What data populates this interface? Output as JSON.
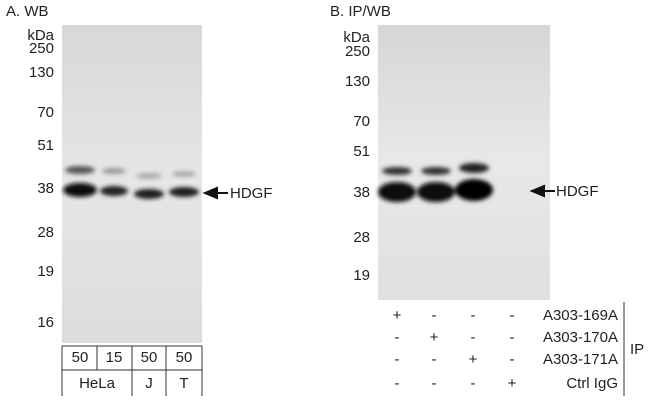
{
  "panel_a": {
    "title": "A. WB",
    "markers": [
      "kDa",
      "250",
      "130",
      "70",
      "51",
      "38",
      "28",
      "19",
      "16"
    ],
    "target": "HDGF",
    "amounts": [
      "50",
      "15",
      "50",
      "50"
    ],
    "cell_lines": [
      "HeLa",
      "J",
      "T"
    ]
  },
  "panel_b": {
    "title": "B. IP/WB",
    "markers": [
      "kDa",
      "250",
      "130",
      "70",
      "51",
      "38",
      "28",
      "19"
    ],
    "target": "HDGF",
    "ip_rows": [
      {
        "signs": [
          "+",
          "-",
          "-",
          "-"
        ],
        "label": "A303-169A"
      },
      {
        "signs": [
          "-",
          "+",
          "-",
          "-"
        ],
        "label": "A303-170A"
      },
      {
        "signs": [
          "-",
          "-",
          "+",
          "-"
        ],
        "label": "A303-171A"
      },
      {
        "signs": [
          "-",
          "-",
          "-",
          "+"
        ],
        "label": "Ctrl IgG"
      }
    ],
    "ip_label": "IP"
  }
}
